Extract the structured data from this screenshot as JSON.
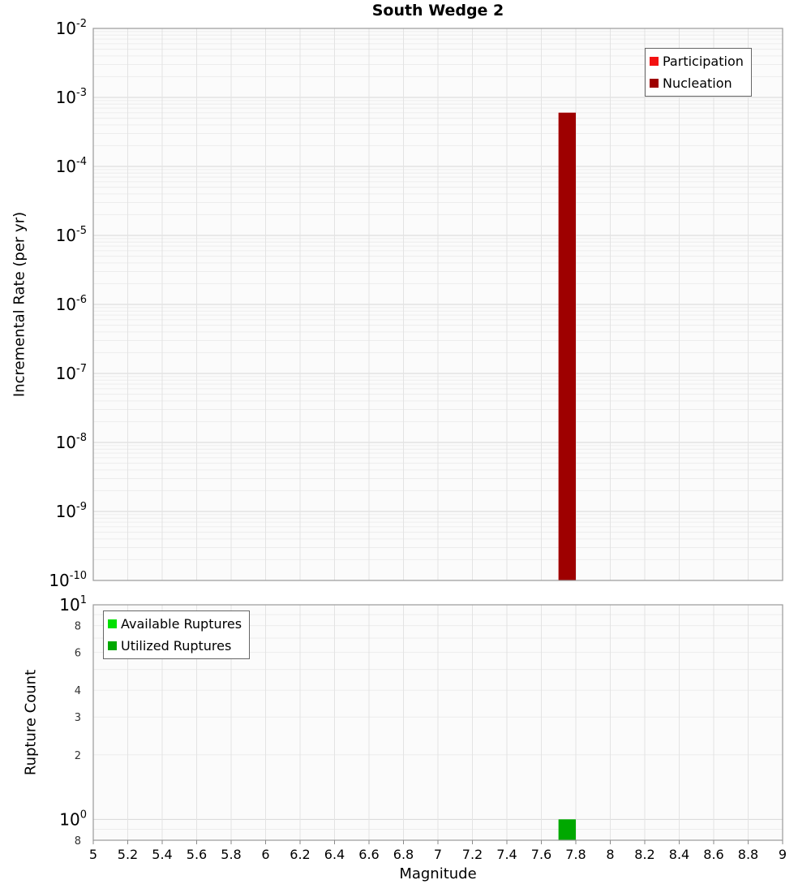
{
  "title": "South Wedge 2",
  "axes": {
    "x_label": "Magnitude",
    "top_y_label": "Incremental Rate (per yr)",
    "bottom_y_label": "Rupture Count"
  },
  "legends": {
    "top": [
      {
        "label": "Participation",
        "color": "#f31111"
      },
      {
        "label": "Nucleation",
        "color": "#9e0000"
      }
    ],
    "bottom": [
      {
        "label": "Available Ruptures",
        "color": "#00e000"
      },
      {
        "label": "Utilized Ruptures",
        "color": "#00a800"
      }
    ]
  },
  "chart_data": [
    {
      "type": "bar",
      "title": "South Wedge 2",
      "xlabel": "Magnitude",
      "ylabel": "Incremental Rate (per yr)",
      "xlim": [
        5,
        9
      ],
      "x_tick_step": 0.2,
      "yscale": "log",
      "ylim": [
        1e-10,
        0.01
      ],
      "bar_width": 0.1,
      "grid": true,
      "legend_position": "top-right",
      "series": [
        {
          "name": "Participation",
          "color": "#f31111",
          "points": [
            {
              "x": 7.75,
              "y": 0.0006
            }
          ]
        },
        {
          "name": "Nucleation",
          "color": "#9e0000",
          "points": [
            {
              "x": 7.75,
              "y": 0.0006
            }
          ]
        }
      ]
    },
    {
      "type": "bar",
      "ylabel": "Rupture Count",
      "xlim": [
        5,
        9
      ],
      "x_tick_step": 0.2,
      "yscale": "log",
      "ylim": [
        0.8,
        10
      ],
      "bar_width": 0.1,
      "grid": true,
      "legend_position": "top-left",
      "minor_tick_labels": [
        8,
        6,
        4,
        3,
        2,
        0.8
      ],
      "series": [
        {
          "name": "Available Ruptures",
          "color": "#00e000",
          "points": [
            {
              "x": 7.75,
              "y": 1
            }
          ]
        },
        {
          "name": "Utilized Ruptures",
          "color": "#00a800",
          "points": [
            {
              "x": 7.75,
              "y": 1
            }
          ]
        }
      ]
    }
  ]
}
